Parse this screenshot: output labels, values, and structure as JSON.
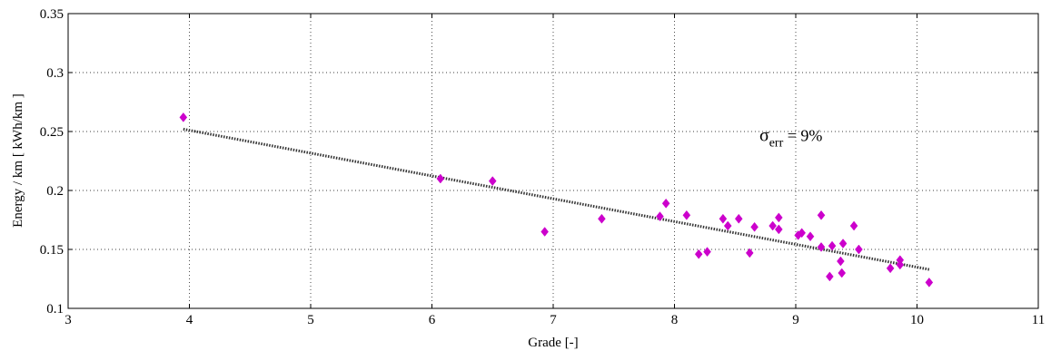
{
  "chart_data": {
    "type": "scatter",
    "xlabel": "Grade [-]",
    "ylabel": "Energy / km [ kWh/km ]",
    "xlim": [
      3,
      11
    ],
    "ylim": [
      0.1,
      0.35
    ],
    "xticks": [
      "3",
      "4",
      "5",
      "6",
      "7",
      "8",
      "9",
      "10",
      "11"
    ],
    "yticks": [
      "0.1",
      "0.15",
      "0.2",
      "0.25",
      "0.3",
      "0.35"
    ],
    "grid": true,
    "marker_color": "#cc00cc",
    "trendline": {
      "x": [
        3.95,
        10.1
      ],
      "y": [
        0.252,
        0.133
      ],
      "style": "dotted"
    },
    "annotation": {
      "symbol": "σ",
      "subscript": "err",
      "text": " = 9%",
      "x": 8.7,
      "y": 0.242
    },
    "points": [
      {
        "x": 3.95,
        "y": 0.262
      },
      {
        "x": 6.07,
        "y": 0.21
      },
      {
        "x": 6.5,
        "y": 0.208
      },
      {
        "x": 6.93,
        "y": 0.165
      },
      {
        "x": 7.4,
        "y": 0.176
      },
      {
        "x": 7.88,
        "y": 0.178
      },
      {
        "x": 7.93,
        "y": 0.189
      },
      {
        "x": 8.1,
        "y": 0.179
      },
      {
        "x": 8.2,
        "y": 0.146
      },
      {
        "x": 8.27,
        "y": 0.148
      },
      {
        "x": 8.4,
        "y": 0.176
      },
      {
        "x": 8.44,
        "y": 0.17
      },
      {
        "x": 8.53,
        "y": 0.176
      },
      {
        "x": 8.62,
        "y": 0.147
      },
      {
        "x": 8.66,
        "y": 0.169
      },
      {
        "x": 8.81,
        "y": 0.17
      },
      {
        "x": 8.86,
        "y": 0.177
      },
      {
        "x": 8.86,
        "y": 0.167
      },
      {
        "x": 9.02,
        "y": 0.162
      },
      {
        "x": 9.05,
        "y": 0.164
      },
      {
        "x": 9.12,
        "y": 0.161
      },
      {
        "x": 9.21,
        "y": 0.179
      },
      {
        "x": 9.21,
        "y": 0.152
      },
      {
        "x": 9.28,
        "y": 0.127
      },
      {
        "x": 9.3,
        "y": 0.153
      },
      {
        "x": 9.37,
        "y": 0.14
      },
      {
        "x": 9.38,
        "y": 0.13
      },
      {
        "x": 9.39,
        "y": 0.155
      },
      {
        "x": 9.48,
        "y": 0.17
      },
      {
        "x": 9.52,
        "y": 0.15
      },
      {
        "x": 9.78,
        "y": 0.134
      },
      {
        "x": 9.86,
        "y": 0.137
      },
      {
        "x": 9.86,
        "y": 0.141
      },
      {
        "x": 10.1,
        "y": 0.122
      }
    ]
  }
}
